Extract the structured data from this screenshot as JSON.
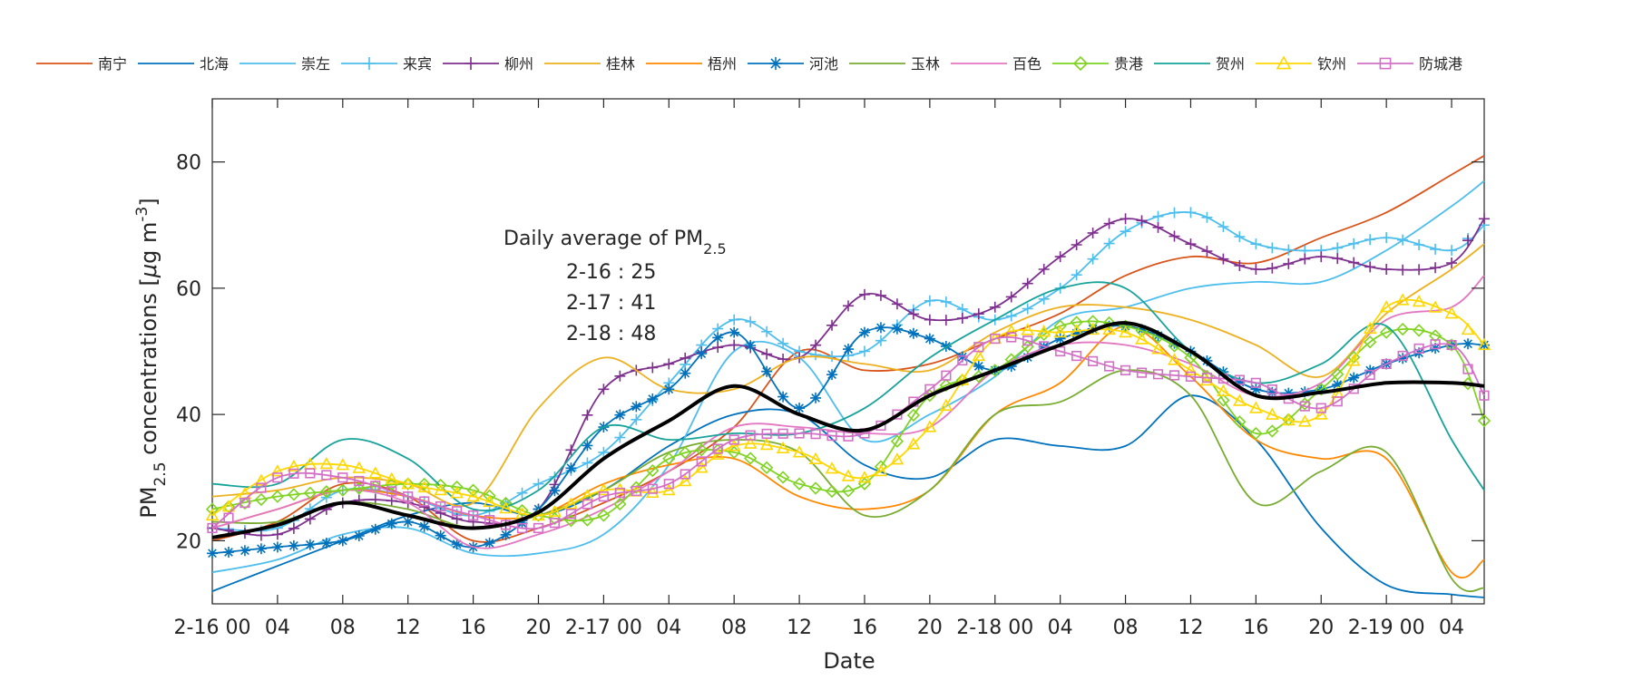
{
  "chart_data": {
    "type": "line",
    "title": "",
    "xlabel": "Date",
    "ylabel": {
      "prefix": "PM",
      "sub": "2.5",
      "mid": " concentrations [",
      "mu": "μ",
      "unit": "g m",
      "sup": "-3",
      "suffix": "]"
    },
    "x_unit": "hours since 2-16 00:00",
    "xlim": [
      0,
      78
    ],
    "ylim": [
      10,
      90
    ],
    "yticks": [
      20,
      40,
      60,
      80
    ],
    "xticks": [
      {
        "x": 0,
        "label": "2-16 00"
      },
      {
        "x": 4,
        "label": "04"
      },
      {
        "x": 8,
        "label": "08"
      },
      {
        "x": 12,
        "label": "12"
      },
      {
        "x": 16,
        "label": "16"
      },
      {
        "x": 20,
        "label": "20"
      },
      {
        "x": 24,
        "label": "2-17 00"
      },
      {
        "x": 28,
        "label": "04"
      },
      {
        "x": 32,
        "label": "08"
      },
      {
        "x": 36,
        "label": "12"
      },
      {
        "x": 40,
        "label": "16"
      },
      {
        "x": 44,
        "label": "20"
      },
      {
        "x": 48,
        "label": "2-18 00"
      },
      {
        "x": 52,
        "label": "04"
      },
      {
        "x": 56,
        "label": "08"
      },
      {
        "x": 60,
        "label": "12"
      },
      {
        "x": 64,
        "label": "16"
      },
      {
        "x": 68,
        "label": "20"
      },
      {
        "x": 72,
        "label": "2-19 00"
      },
      {
        "x": 76,
        "label": "04"
      }
    ],
    "annotation": {
      "title_prefix": "Daily average of PM",
      "title_sub": "2.5",
      "lines": [
        "2-16 : 25",
        "2-17 : 41",
        "2-18 : 48"
      ]
    },
    "key_x": [
      0,
      4,
      8,
      12,
      16,
      20,
      24,
      28,
      32,
      36,
      40,
      44,
      48,
      52,
      56,
      60,
      64,
      68,
      72,
      76,
      78
    ],
    "series": [
      {
        "name": "南宁",
        "color": "#D95319",
        "marker": "none",
        "values": [
          20,
          23,
          29,
          27,
          20,
          22,
          26,
          31,
          38,
          50,
          47,
          48,
          52,
          56,
          62,
          65,
          64,
          68,
          72,
          78,
          81
        ]
      },
      {
        "name": "北海",
        "color": "#0072BD",
        "marker": "none",
        "values": [
          12,
          16,
          20,
          24,
          26,
          24,
          28,
          35,
          40,
          40,
          32,
          30,
          36,
          35,
          35,
          43,
          36,
          22,
          13,
          11.5,
          11
        ]
      },
      {
        "name": "崇左",
        "color": "#4DBEEE",
        "marker": "none",
        "values": [
          15,
          17,
          21,
          22,
          18,
          18,
          21,
          32,
          50,
          49,
          36,
          40,
          46,
          55,
          57,
          60,
          61,
          61,
          66,
          73,
          77
        ]
      },
      {
        "name": "来宾",
        "color": "#4DBEEE",
        "marker": "plus",
        "values": [
          22,
          22,
          28,
          27,
          24,
          29,
          34,
          45,
          55,
          50,
          50,
          58,
          55,
          60,
          69,
          72,
          67,
          66,
          68,
          66,
          70
        ]
      },
      {
        "name": "柳州",
        "color": "#7E2F8E",
        "marker": "plus",
        "values": [
          22,
          21,
          26,
          26,
          23,
          25,
          44,
          48,
          51,
          49,
          59,
          55,
          57,
          65,
          71,
          67,
          63,
          65,
          63,
          64,
          71
        ]
      },
      {
        "name": "桂林",
        "color": "#EDB120",
        "marker": "none",
        "values": [
          27,
          28,
          30,
          29,
          26,
          41,
          49,
          44,
          44,
          49,
          48,
          47,
          53,
          57,
          57,
          55,
          51,
          46,
          56,
          63,
          67
        ]
      },
      {
        "name": "梧州",
        "color": "#FF8800",
        "marker": "none",
        "values": [
          22,
          25,
          28,
          27,
          24,
          24,
          29,
          32,
          33,
          27,
          25,
          28,
          40,
          45,
          54,
          46,
          36,
          33,
          33,
          15,
          17
        ]
      },
      {
        "name": "河池",
        "color": "#0072BD",
        "marker": "asterisk",
        "values": [
          18,
          19,
          20,
          23,
          19,
          25,
          38,
          44,
          53,
          41,
          53,
          52,
          47,
          52,
          54,
          50,
          44,
          44,
          48,
          51,
          51
        ]
      },
      {
        "name": "玉林",
        "color": "#77AC30",
        "marker": "none",
        "values": [
          23,
          23,
          26,
          25,
          22,
          24,
          28,
          34,
          36,
          34,
          24,
          28,
          40,
          42,
          47,
          43,
          26,
          31,
          34,
          14,
          12.5
        ]
      },
      {
        "name": "百色",
        "color": "#E377C2",
        "marker": "none",
        "values": [
          22,
          25,
          28,
          26,
          19,
          21,
          25,
          31,
          38,
          38,
          37,
          38,
          47,
          51,
          51,
          48,
          43,
          45,
          55,
          57,
          62
        ]
      },
      {
        "name": "贵港",
        "color": "#7FD321",
        "marker": "diamond",
        "values": [
          25,
          27,
          28,
          29,
          28,
          24,
          24,
          33,
          34,
          29,
          29,
          43,
          47,
          54,
          54,
          49,
          37,
          44,
          53,
          51,
          39
        ]
      },
      {
        "name": "贺州",
        "color": "#17A39A",
        "marker": "none",
        "values": [
          29,
          29,
          36,
          33,
          25,
          28,
          38,
          36,
          37,
          37,
          41,
          49,
          55,
          60,
          60,
          50,
          45,
          48,
          54,
          36,
          28
        ]
      },
      {
        "name": "钦州",
        "color": "#FFD700",
        "marker": "triangle",
        "values": [
          24,
          31,
          32,
          29,
          27,
          24,
          28,
          28,
          35,
          34,
          30,
          38,
          52,
          53,
          53,
          47,
          41,
          40,
          57,
          56,
          51
        ]
      },
      {
        "name": "防城港",
        "color": "#D36FC6",
        "marker": "square",
        "values": [
          22,
          30,
          30,
          27,
          24,
          22,
          27,
          29,
          36,
          37,
          37,
          44,
          52,
          50,
          47,
          46,
          45,
          41,
          48,
          51,
          43
        ]
      },
      {
        "name": "",
        "color": "#000000",
        "marker": "none",
        "width": 4,
        "values": [
          20.5,
          22.5,
          26,
          24,
          22,
          24.5,
          33,
          39,
          44.5,
          40,
          37.5,
          43,
          47,
          51,
          54.5,
          50,
          43,
          43.5,
          45,
          45,
          44.5
        ]
      }
    ]
  }
}
